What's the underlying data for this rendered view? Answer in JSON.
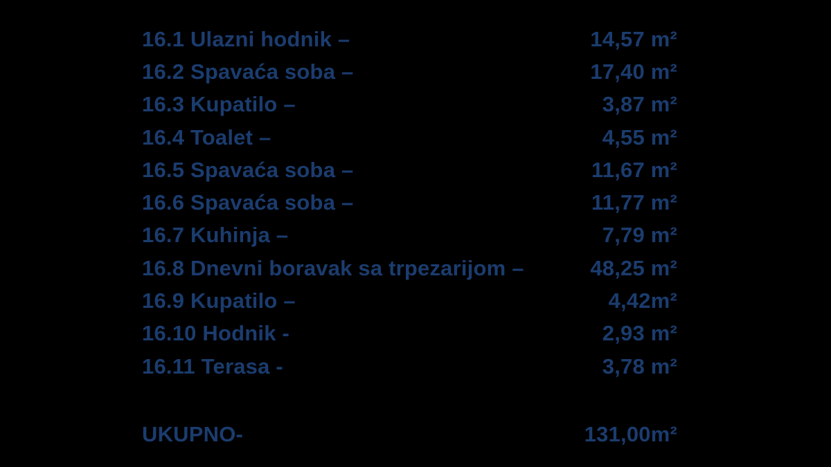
{
  "page": {
    "background": "#000000",
    "text_color": "#1b3c6e"
  },
  "rooms": [
    {
      "label": "16.1 Ulazni hodnik –",
      "area": "14,57 m²"
    },
    {
      "label": "16.2 Spavaća soba –",
      "area": "17,40 m²"
    },
    {
      "label": "16.3 Kupatilo –",
      "area": "3,87 m²"
    },
    {
      "label": "16.4 Toalet –",
      "area": "4,55 m²"
    },
    {
      "label": "16.5 Spavaća soba –",
      "area": "11,67 m²"
    },
    {
      "label": "16.6 Spavaća soba –",
      "area": "11,77 m²"
    },
    {
      "label": "16.7 Kuhinja –",
      "area": "7,79 m²"
    },
    {
      "label": "16.8 Dnevni boravak sa trpezarijom –",
      "area": "48,25 m²"
    },
    {
      "label": "16.9 Kupatilo –",
      "area": "4,42m²"
    },
    {
      "label": "16.10 Hodnik -",
      "area": "2,93 m²"
    },
    {
      "label": "16.11 Terasa -",
      "area": "3,78 m²"
    }
  ],
  "total": {
    "label": "UKUPNO-",
    "area": "131,00m²"
  }
}
